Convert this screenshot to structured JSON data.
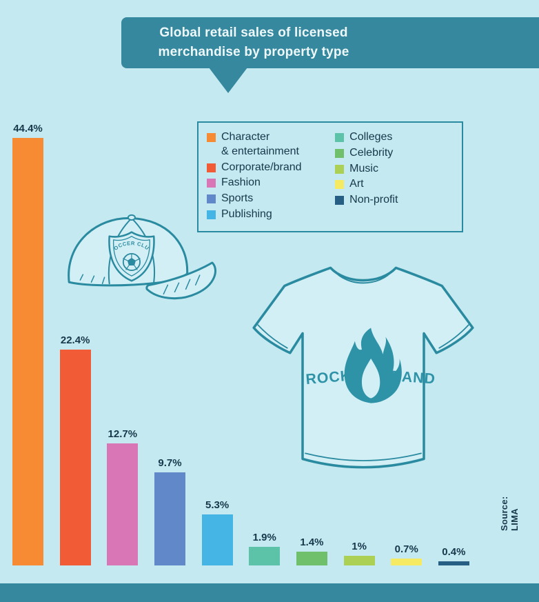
{
  "title": {
    "line1": "Global retail sales of licensed",
    "line2": "merchandise by property type"
  },
  "source_label": "Source: LIMA",
  "colors": {
    "background": "#c4e9f0",
    "banner": "#35889e",
    "bottom_strip": "#35889e",
    "illustration_outline": "#2a8aa0",
    "text": "#17384b"
  },
  "legend": {
    "columns": [
      [
        {
          "label": "Character\n& entertainment",
          "color": "#f68b33"
        },
        {
          "label": "Corporate/brand",
          "color": "#f15b35"
        },
        {
          "label": "Fashion",
          "color": "#d976b5"
        },
        {
          "label": "Sports",
          "color": "#6189c9"
        },
        {
          "label": "Publishing",
          "color": "#45b5e5"
        }
      ],
      [
        {
          "label": "Colleges",
          "color": "#5cc2a8"
        },
        {
          "label": "Celebrity",
          "color": "#6fbf6b"
        },
        {
          "label": "Music",
          "color": "#abd054"
        },
        {
          "label": "Art",
          "color": "#f5ea61"
        },
        {
          "label": "Non-profit",
          "color": "#265e84"
        }
      ]
    ]
  },
  "chart_data": {
    "type": "bar",
    "title": "Global retail sales of licensed merchandise by property type",
    "categories": [
      "Character & entertainment",
      "Corporate/brand",
      "Fashion",
      "Sports",
      "Publishing",
      "Colleges",
      "Celebrity",
      "Music",
      "Art",
      "Non-profit"
    ],
    "values": [
      44.4,
      22.4,
      12.7,
      9.7,
      5.3,
      1.9,
      1.4,
      1.0,
      0.7,
      0.4
    ],
    "labels": [
      "44.4%",
      "22.4%",
      "12.7%",
      "9.7%",
      "5.3%",
      "1.9%",
      "1.4%",
      "1%",
      "0.7%",
      "0.4%"
    ],
    "colors": [
      "#f68b33",
      "#f15b35",
      "#d976b5",
      "#6189c9",
      "#45b5e5",
      "#5cc2a8",
      "#6fbf6b",
      "#abd054",
      "#f5ea61",
      "#265e84"
    ],
    "unit": "%",
    "xlabel": "",
    "ylabel": "",
    "ylim": [
      0,
      44.4
    ],
    "grid": false,
    "legend_position": "top-right",
    "source": "Source: LIMA"
  },
  "illustrations": {
    "cap_badge_text": "SOCCER CLUB",
    "tshirt_text_left": "ROCK",
    "tshirt_text_right": "BAND"
  }
}
